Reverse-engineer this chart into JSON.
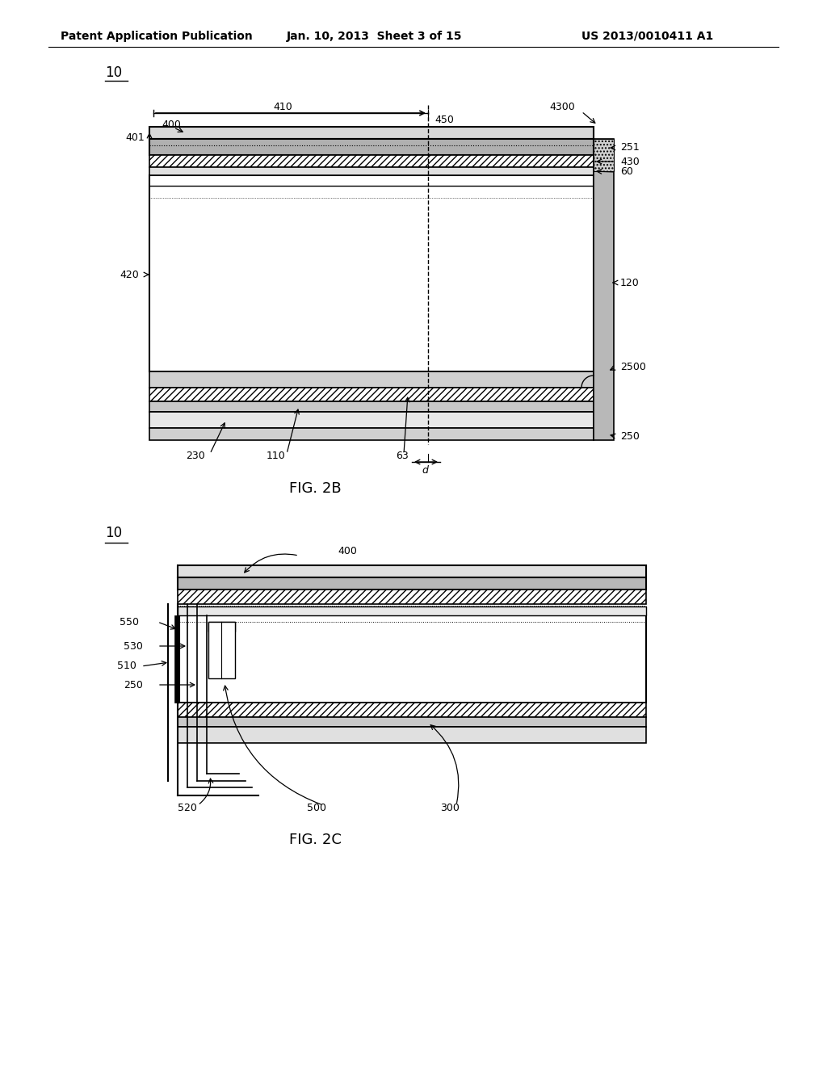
{
  "bg_color": "#ffffff",
  "header_text": "Patent Application Publication",
  "header_date": "Jan. 10, 2013  Sheet 3 of 15",
  "header_patent": "US 2013/0010411 A1",
  "fig2b_label": "FIG. 2B",
  "fig2c_label": "FIG. 2C",
  "line_color": "#000000"
}
